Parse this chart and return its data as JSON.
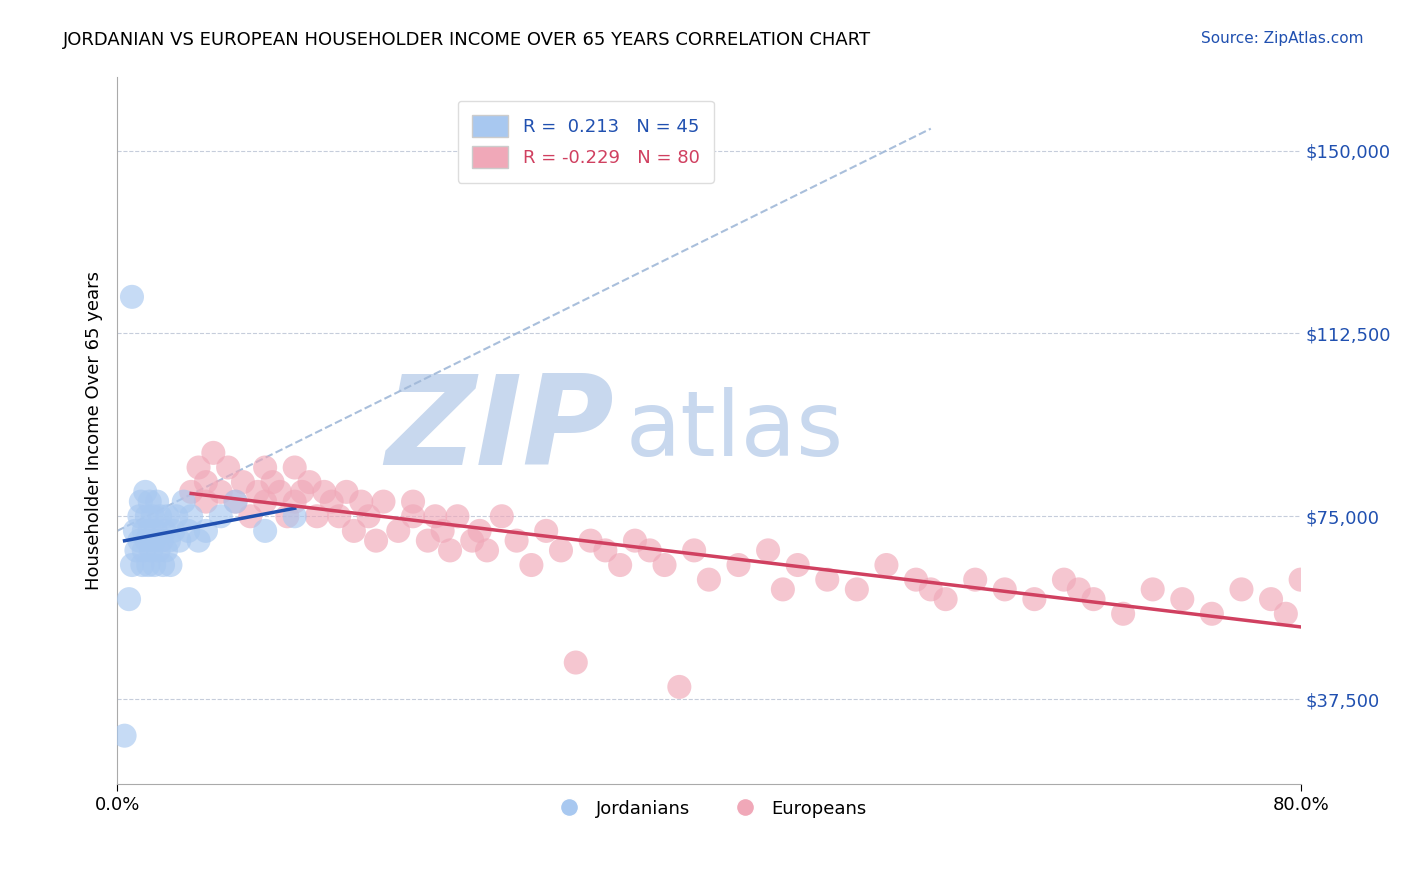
{
  "title": "JORDANIAN VS EUROPEAN HOUSEHOLDER INCOME OVER 65 YEARS CORRELATION CHART",
  "source": "Source: ZipAtlas.com",
  "ylabel": "Householder Income Over 65 years",
  "yticks": [
    37500,
    75000,
    112500,
    150000
  ],
  "ytick_labels": [
    "$37,500",
    "$75,000",
    "$112,500",
    "$150,000"
  ],
  "xlim": [
    0.0,
    0.8
  ],
  "ylim": [
    20000,
    165000
  ],
  "legend_blue_r": "R =  0.213",
  "legend_blue_n": "N = 45",
  "legend_pink_r": "R = -0.229",
  "legend_pink_n": "N = 80",
  "legend_label_blue": "Jordanians",
  "legend_label_pink": "Europeans",
  "blue_color": "#a8c8f0",
  "pink_color": "#f0a8b8",
  "blue_line_color": "#2050b0",
  "pink_line_color": "#d04060",
  "diag_line_color": "#a0b8d8",
  "watermark_zip": "ZIP",
  "watermark_atlas": "atlas",
  "watermark_color": "#c8d8ee",
  "jordanians_x": [
    0.005,
    0.008,
    0.01,
    0.01,
    0.012,
    0.013,
    0.015,
    0.015,
    0.016,
    0.017,
    0.018,
    0.018,
    0.019,
    0.02,
    0.02,
    0.021,
    0.022,
    0.022,
    0.023,
    0.024,
    0.025,
    0.025,
    0.026,
    0.027,
    0.028,
    0.029,
    0.03,
    0.031,
    0.032,
    0.033,
    0.034,
    0.035,
    0.036,
    0.038,
    0.04,
    0.042,
    0.045,
    0.048,
    0.05,
    0.055,
    0.06,
    0.07,
    0.08,
    0.1,
    0.12
  ],
  "jordanians_y": [
    30000,
    58000,
    120000,
    65000,
    72000,
    68000,
    75000,
    70000,
    78000,
    65000,
    72000,
    68000,
    80000,
    75000,
    70000,
    65000,
    78000,
    72000,
    68000,
    75000,
    70000,
    65000,
    72000,
    78000,
    68000,
    75000,
    70000,
    65000,
    72000,
    68000,
    75000,
    70000,
    65000,
    72000,
    75000,
    70000,
    78000,
    72000,
    75000,
    70000,
    72000,
    75000,
    78000,
    72000,
    75000
  ],
  "europeans_x": [
    0.05,
    0.055,
    0.06,
    0.06,
    0.065,
    0.07,
    0.075,
    0.08,
    0.085,
    0.09,
    0.095,
    0.1,
    0.1,
    0.105,
    0.11,
    0.115,
    0.12,
    0.12,
    0.125,
    0.13,
    0.135,
    0.14,
    0.145,
    0.15,
    0.155,
    0.16,
    0.165,
    0.17,
    0.175,
    0.18,
    0.19,
    0.2,
    0.2,
    0.21,
    0.215,
    0.22,
    0.225,
    0.23,
    0.24,
    0.245,
    0.25,
    0.26,
    0.27,
    0.28,
    0.29,
    0.3,
    0.31,
    0.32,
    0.33,
    0.34,
    0.35,
    0.36,
    0.37,
    0.38,
    0.39,
    0.4,
    0.42,
    0.44,
    0.45,
    0.46,
    0.48,
    0.5,
    0.52,
    0.54,
    0.55,
    0.56,
    0.58,
    0.6,
    0.62,
    0.64,
    0.65,
    0.66,
    0.68,
    0.7,
    0.72,
    0.74,
    0.76,
    0.78,
    0.79,
    0.8
  ],
  "europeans_y": [
    80000,
    85000,
    78000,
    82000,
    88000,
    80000,
    85000,
    78000,
    82000,
    75000,
    80000,
    85000,
    78000,
    82000,
    80000,
    75000,
    78000,
    85000,
    80000,
    82000,
    75000,
    80000,
    78000,
    75000,
    80000,
    72000,
    78000,
    75000,
    70000,
    78000,
    72000,
    75000,
    78000,
    70000,
    75000,
    72000,
    68000,
    75000,
    70000,
    72000,
    68000,
    75000,
    70000,
    65000,
    72000,
    68000,
    45000,
    70000,
    68000,
    65000,
    70000,
    68000,
    65000,
    40000,
    68000,
    62000,
    65000,
    68000,
    60000,
    65000,
    62000,
    60000,
    65000,
    62000,
    60000,
    58000,
    62000,
    60000,
    58000,
    62000,
    60000,
    58000,
    55000,
    60000,
    58000,
    55000,
    60000,
    58000,
    55000,
    62000
  ]
}
